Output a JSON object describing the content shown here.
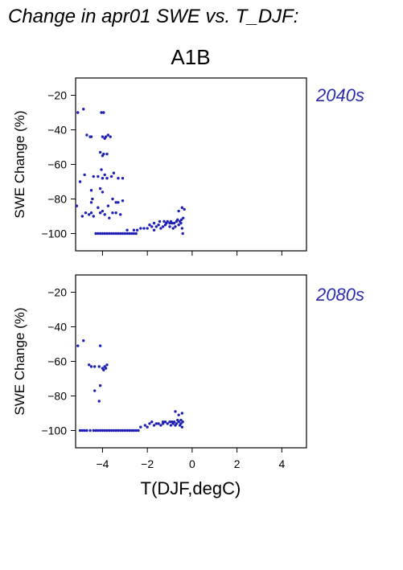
{
  "figure": {
    "title": "Change in apr01 SWE vs. T_DJF:",
    "scenario": "A1B",
    "xlabel": "T(DJF,degC)",
    "colors": {
      "points": "#1f1fb4",
      "period_label": "#2b2bb0",
      "text": "#000000"
    }
  },
  "chart_data": [
    {
      "type": "scatter",
      "period": "2040s",
      "ylabel": "SWE Change (%)",
      "xlim": [
        -5.2,
        5.1
      ],
      "ylim": [
        -110,
        -10
      ],
      "xticks": [
        -4,
        -2,
        0,
        2,
        4
      ],
      "yticks": [
        -20,
        -40,
        -60,
        -80,
        -100
      ],
      "x_tick_labels_shown": false,
      "grid": false,
      "points": [
        [
          -5.1,
          -30
        ],
        [
          -4.85,
          -28
        ],
        [
          -4.7,
          -43
        ],
        [
          -4.55,
          -44
        ],
        [
          -4.5,
          -44
        ],
        [
          -4.05,
          -30
        ],
        [
          -3.95,
          -30
        ],
        [
          -4.0,
          -44
        ],
        [
          -3.9,
          -45
        ],
        [
          -3.85,
          -44
        ],
        [
          -3.75,
          -43
        ],
        [
          -3.65,
          -44
        ],
        [
          -4.1,
          -53
        ],
        [
          -4.0,
          -55
        ],
        [
          -3.95,
          -54
        ],
        [
          -3.8,
          -54
        ],
        [
          -4.05,
          -63
        ],
        [
          -5.0,
          -70
        ],
        [
          -4.8,
          -66
        ],
        [
          -4.4,
          -67
        ],
        [
          -4.2,
          -67
        ],
        [
          -4.0,
          -68
        ],
        [
          -3.9,
          -66
        ],
        [
          -3.8,
          -68
        ],
        [
          -3.6,
          -67
        ],
        [
          -3.5,
          -65
        ],
        [
          -3.3,
          -68
        ],
        [
          -3.1,
          -68
        ],
        [
          -4.5,
          -75
        ],
        [
          -4.1,
          -74
        ],
        [
          -4.0,
          -76
        ],
        [
          -5.15,
          -84
        ],
        [
          -4.5,
          -82
        ],
        [
          -4.45,
          -80
        ],
        [
          -3.75,
          -84
        ],
        [
          -3.55,
          -80
        ],
        [
          -3.4,
          -82
        ],
        [
          -3.3,
          -82
        ],
        [
          -3.1,
          -81
        ],
        [
          -4.9,
          -90
        ],
        [
          -4.75,
          -88
        ],
        [
          -4.6,
          -89
        ],
        [
          -4.5,
          -88
        ],
        [
          -4.4,
          -90
        ],
        [
          -4.2,
          -85
        ],
        [
          -4.1,
          -88
        ],
        [
          -4.0,
          -87
        ],
        [
          -3.9,
          -89
        ],
        [
          -3.7,
          -91
        ],
        [
          -3.55,
          -88
        ],
        [
          -3.4,
          -88
        ],
        [
          -3.2,
          -89
        ],
        [
          -4.3,
          -100
        ],
        [
          -4.2,
          -100
        ],
        [
          -4.1,
          -100
        ],
        [
          -4.0,
          -100
        ],
        [
          -3.9,
          -100
        ],
        [
          -3.8,
          -100
        ],
        [
          -3.7,
          -100
        ],
        [
          -3.6,
          -100
        ],
        [
          -3.5,
          -100
        ],
        [
          -3.4,
          -100
        ],
        [
          -3.3,
          -100
        ],
        [
          -3.2,
          -100
        ],
        [
          -3.1,
          -100
        ],
        [
          -3.0,
          -100
        ],
        [
          -2.9,
          -100
        ],
        [
          -2.8,
          -100
        ],
        [
          -2.7,
          -100
        ],
        [
          -2.6,
          -100
        ],
        [
          -2.5,
          -100
        ],
        [
          -2.9,
          -98
        ],
        [
          -2.6,
          -98
        ],
        [
          -2.45,
          -98
        ],
        [
          -2.3,
          -97
        ],
        [
          -2.15,
          -97
        ],
        [
          -2.0,
          -97
        ],
        [
          -1.9,
          -95
        ],
        [
          -1.8,
          -96
        ],
        [
          -1.7,
          -98
        ],
        [
          -1.6,
          -96
        ],
        [
          -1.5,
          -95
        ],
        [
          -1.45,
          -93
        ],
        [
          -1.4,
          -97
        ],
        [
          -1.3,
          -96
        ],
        [
          -1.2,
          -95
        ],
        [
          -1.15,
          -94
        ],
        [
          -1.1,
          -93
        ],
        [
          -1.0,
          -96
        ],
        [
          -0.95,
          -93
        ],
        [
          -0.9,
          -94
        ],
        [
          -0.85,
          -97
        ],
        [
          -0.8,
          -94
        ],
        [
          -0.75,
          -96
        ],
        [
          -0.7,
          -93
        ],
        [
          -0.65,
          -92
        ],
        [
          -0.6,
          -95
        ],
        [
          -0.55,
          -93
        ],
        [
          -0.5,
          -94
        ],
        [
          -0.48,
          -92
        ],
        [
          -0.45,
          -97
        ],
        [
          -0.42,
          -100
        ],
        [
          -0.6,
          -87
        ],
        [
          -0.45,
          -85
        ],
        [
          -0.35,
          -86
        ],
        [
          -0.4,
          -91
        ],
        [
          -1.0,
          -94
        ],
        [
          -1.25,
          -93
        ],
        [
          -1.7,
          -94
        ]
      ]
    },
    {
      "type": "scatter",
      "period": "2080s",
      "ylabel": "SWE Change (%)",
      "xlim": [
        -5.2,
        5.1
      ],
      "ylim": [
        -110,
        -10
      ],
      "xticks": [
        -4,
        -2,
        0,
        2,
        4
      ],
      "yticks": [
        -20,
        -40,
        -60,
        -80,
        -100
      ],
      "x_tick_labels_shown": true,
      "grid": false,
      "points": [
        [
          -5.1,
          -51
        ],
        [
          -4.85,
          -48
        ],
        [
          -4.1,
          -51
        ],
        [
          -4.6,
          -62
        ],
        [
          -4.5,
          -63
        ],
        [
          -4.35,
          -63
        ],
        [
          -4.15,
          -63
        ],
        [
          -4.0,
          -64
        ],
        [
          -3.95,
          -65
        ],
        [
          -3.9,
          -63
        ],
        [
          -3.85,
          -64
        ],
        [
          -3.8,
          -62
        ],
        [
          -4.35,
          -77
        ],
        [
          -4.1,
          -74
        ],
        [
          -4.15,
          -83
        ],
        [
          -5.0,
          -100
        ],
        [
          -4.9,
          -100
        ],
        [
          -4.8,
          -100
        ],
        [
          -4.7,
          -100
        ],
        [
          -4.55,
          -100
        ],
        [
          -4.4,
          -100
        ],
        [
          -4.3,
          -100
        ],
        [
          -4.2,
          -100
        ],
        [
          -4.1,
          -100
        ],
        [
          -4.0,
          -100
        ],
        [
          -3.9,
          -100
        ],
        [
          -3.8,
          -100
        ],
        [
          -3.7,
          -100
        ],
        [
          -3.6,
          -100
        ],
        [
          -3.5,
          -100
        ],
        [
          -3.4,
          -100
        ],
        [
          -3.3,
          -100
        ],
        [
          -3.2,
          -100
        ],
        [
          -3.1,
          -100
        ],
        [
          -3.0,
          -100
        ],
        [
          -2.9,
          -100
        ],
        [
          -2.8,
          -100
        ],
        [
          -2.7,
          -100
        ],
        [
          -2.6,
          -100
        ],
        [
          -2.5,
          -100
        ],
        [
          -2.4,
          -100
        ],
        [
          -2.3,
          -98
        ],
        [
          -2.1,
          -97
        ],
        [
          -2.0,
          -98
        ],
        [
          -1.8,
          -95
        ],
        [
          -1.7,
          -97
        ],
        [
          -1.6,
          -96
        ],
        [
          -1.5,
          -96
        ],
        [
          -1.4,
          -97
        ],
        [
          -1.3,
          -96
        ],
        [
          -1.2,
          -95
        ],
        [
          -1.1,
          -96
        ],
        [
          -1.0,
          -95
        ],
        [
          -0.95,
          -97
        ],
        [
          -0.9,
          -95
        ],
        [
          -0.85,
          -96
        ],
        [
          -0.8,
          -95
        ],
        [
          -0.75,
          -97
        ],
        [
          -0.7,
          -96
        ],
        [
          -0.65,
          -94
        ],
        [
          -0.6,
          -95
        ],
        [
          -0.55,
          -97
        ],
        [
          -0.5,
          -96
        ],
        [
          -0.45,
          -98
        ],
        [
          -0.42,
          -95
        ],
        [
          -0.75,
          -89
        ],
        [
          -0.6,
          -91
        ],
        [
          -0.45,
          -90
        ],
        [
          -0.5,
          -94
        ],
        [
          -1.3,
          -95
        ],
        [
          -1.9,
          -96
        ]
      ]
    }
  ]
}
